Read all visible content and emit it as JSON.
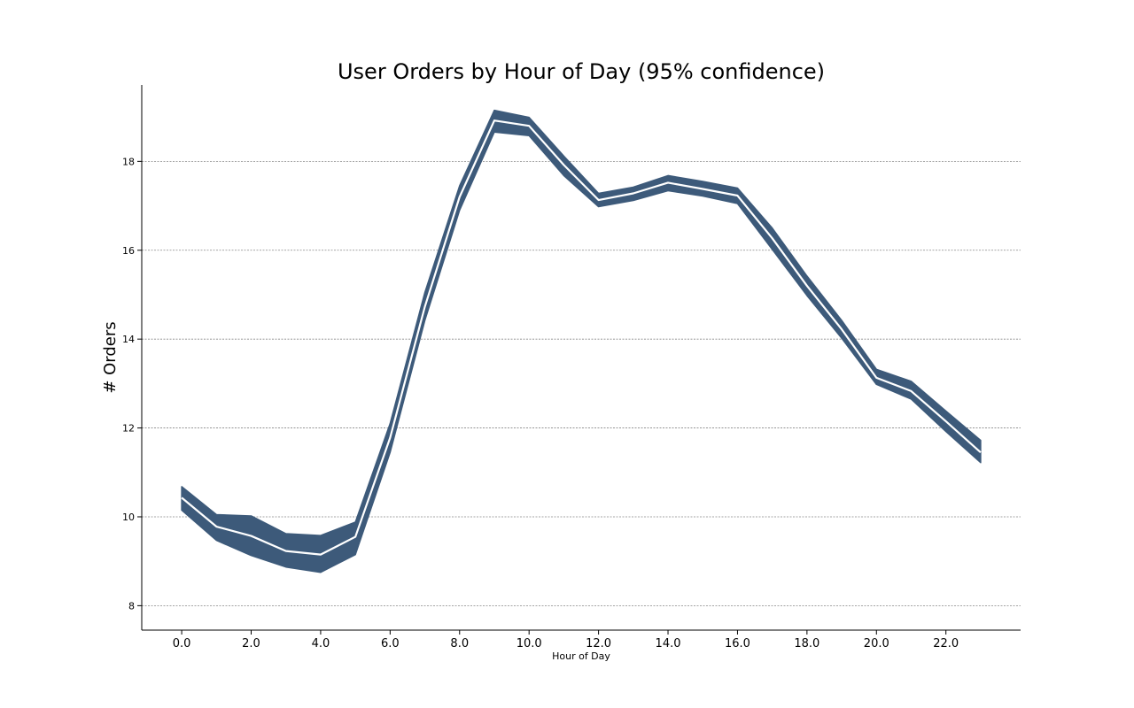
{
  "chart_data": {
    "type": "line",
    "title": "User Orders by Hour of Day (95% confidence)",
    "xlabel": "Hour of Day",
    "ylabel": "# Orders",
    "x": [
      0,
      1,
      2,
      3,
      4,
      5,
      6,
      7,
      8,
      9,
      10,
      11,
      12,
      13,
      14,
      15,
      16,
      17,
      18,
      19,
      20,
      21,
      22,
      23
    ],
    "mean": [
      10.43,
      9.78,
      9.57,
      9.23,
      9.15,
      9.55,
      11.78,
      14.73,
      17.2,
      18.92,
      18.8,
      17.92,
      17.13,
      17.28,
      17.52,
      17.38,
      17.23,
      16.27,
      15.2,
      14.22,
      13.13,
      12.83,
      12.15,
      11.45
    ],
    "lower": [
      10.15,
      9.47,
      9.13,
      8.87,
      8.75,
      9.15,
      11.45,
      14.42,
      16.9,
      18.66,
      18.58,
      17.68,
      16.98,
      17.12,
      17.34,
      17.22,
      17.05,
      16.02,
      14.98,
      14.02,
      12.98,
      12.65,
      11.92,
      11.22
    ],
    "upper": [
      10.68,
      10.05,
      10.02,
      9.62,
      9.58,
      9.88,
      12.1,
      15.05,
      17.45,
      19.15,
      18.99,
      18.12,
      17.28,
      17.42,
      17.68,
      17.55,
      17.4,
      16.5,
      15.42,
      14.42,
      13.32,
      13.05,
      12.38,
      11.72
    ],
    "xticks": [
      "0.0",
      "2.0",
      "4.0",
      "6.0",
      "8.0",
      "10.0",
      "12.0",
      "14.0",
      "16.0",
      "18.0",
      "20.0",
      "22.0"
    ],
    "xtick_values": [
      0,
      2,
      4,
      6,
      8,
      10,
      12,
      14,
      16,
      18,
      20,
      22
    ],
    "yticks": [
      "8",
      "10",
      "12",
      "14",
      "16",
      "18"
    ],
    "ytick_values": [
      8,
      10,
      12,
      14,
      16,
      18
    ],
    "xlim": [
      -1.15,
      24.15
    ],
    "ylim": [
      7.45,
      19.72
    ],
    "grid": "horizontal-dotted",
    "band_color": "#3d5a7a",
    "line_color": "#ffffff"
  }
}
